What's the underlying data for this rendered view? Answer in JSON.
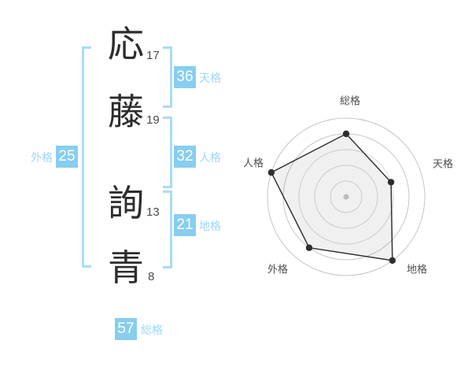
{
  "name_chars": [
    {
      "char": "応",
      "strokes": "17"
    },
    {
      "char": "藤",
      "strokes": "19"
    },
    {
      "char": "詢",
      "strokes": "13"
    },
    {
      "char": "青",
      "strokes": "8"
    }
  ],
  "scores": {
    "tenkaku": {
      "label": "天格",
      "value": "36"
    },
    "jinkaku": {
      "label": "人格",
      "value": "32"
    },
    "chikaku": {
      "label": "地格",
      "value": "21"
    },
    "gaikaku": {
      "label": "外格",
      "value": "25"
    },
    "soukaku": {
      "label": "総格",
      "value": "57"
    }
  },
  "colors": {
    "badge_blue": "#87cef0",
    "label_blue": "#9dd7f7",
    "bracket_blue": "#a9dcf6",
    "polygon_stroke": "#333333",
    "ring_outer": "#c6c6c6",
    "ring_inner": "#d8d8d8",
    "center_dot": "#bcbcbc"
  },
  "chart_data": {
    "type": "radar",
    "axes": [
      "総格",
      "天格",
      "地格",
      "外格",
      "人格"
    ],
    "values": [
      4,
      3,
      5,
      4,
      5
    ],
    "max": 5,
    "rings": 5,
    "legend": "none",
    "grid": "circular"
  }
}
